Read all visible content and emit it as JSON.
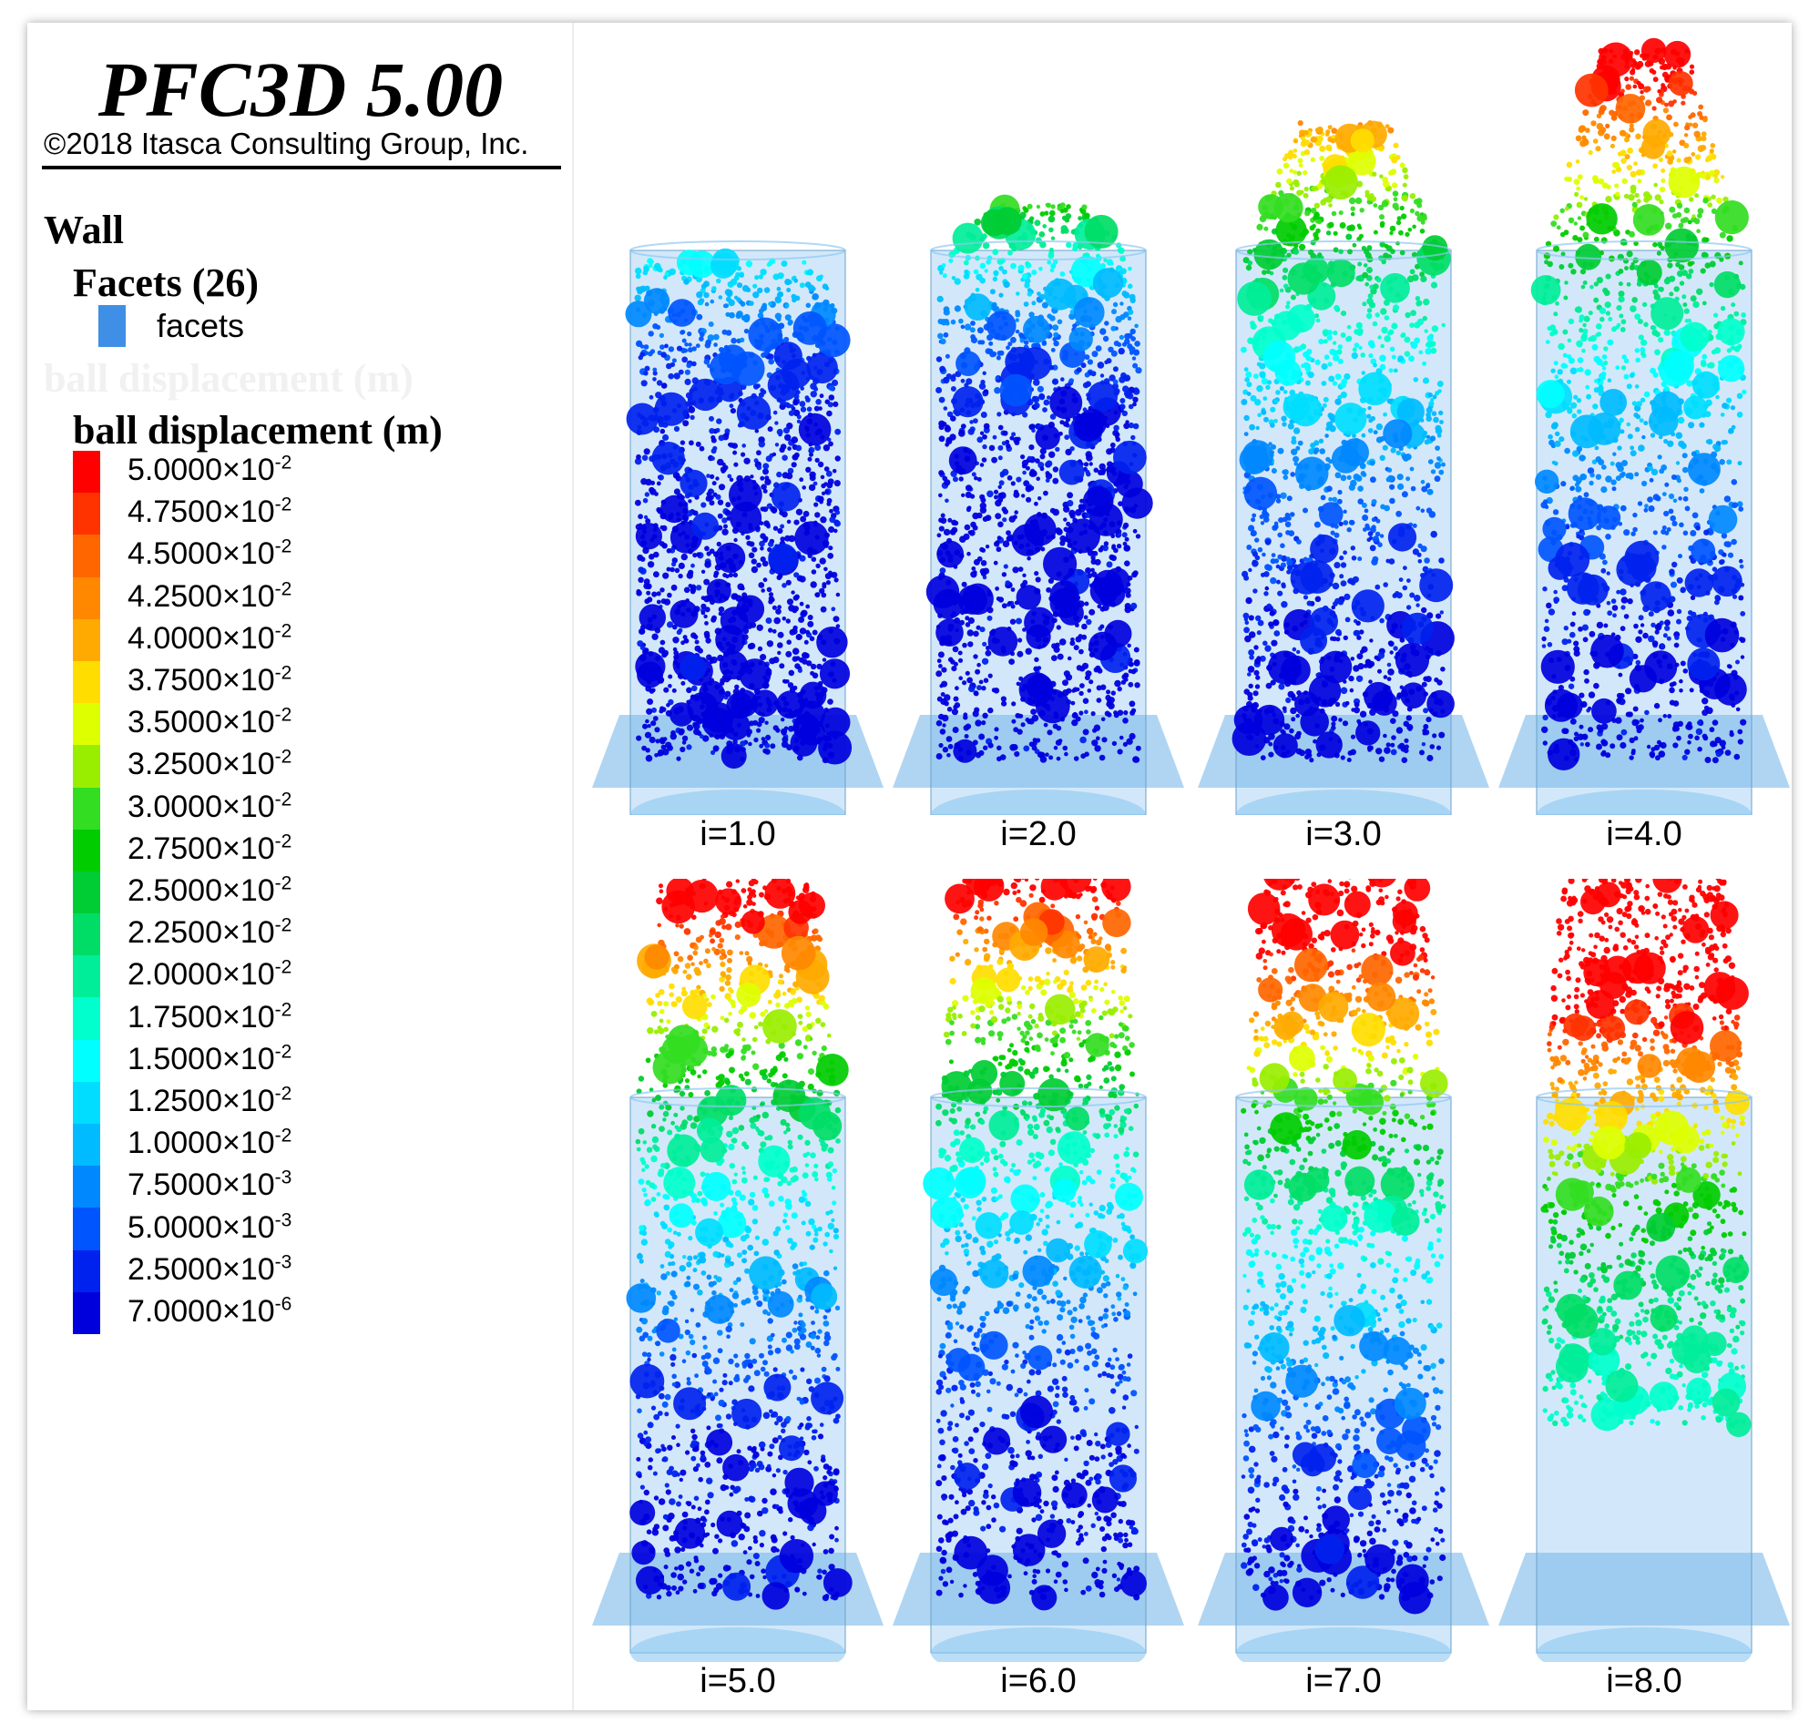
{
  "title": "PFC3D 5.00",
  "copyright": "©2018 Itasca Consulting Group, Inc.",
  "legend": {
    "wall_heading": "Wall",
    "facets_heading": "Facets (26)",
    "facets_label": "facets",
    "facets_color": "#3f8fe6",
    "ghost_heading": "ball displacement (m)",
    "ball_heading": "ball displacement (m)",
    "colorbar": [
      {
        "mant": "5.0000×10",
        "exp": "-2",
        "color": "#ff0000"
      },
      {
        "mant": "4.7500×10",
        "exp": "-2",
        "color": "#ff3300"
      },
      {
        "mant": "4.5000×10",
        "exp": "-2",
        "color": "#ff6600"
      },
      {
        "mant": "4.2500×10",
        "exp": "-2",
        "color": "#ff8800"
      },
      {
        "mant": "4.0000×10",
        "exp": "-2",
        "color": "#ffaa00"
      },
      {
        "mant": "3.7500×10",
        "exp": "-2",
        "color": "#ffdd00"
      },
      {
        "mant": "3.5000×10",
        "exp": "-2",
        "color": "#ddff00"
      },
      {
        "mant": "3.2500×10",
        "exp": "-2",
        "color": "#99ee00"
      },
      {
        "mant": "3.0000×10",
        "exp": "-2",
        "color": "#33dd22"
      },
      {
        "mant": "2.7500×10",
        "exp": "-2",
        "color": "#00cc00"
      },
      {
        "mant": "2.5000×10",
        "exp": "-2",
        "color": "#00cc33"
      },
      {
        "mant": "2.2500×10",
        "exp": "-2",
        "color": "#00dd66"
      },
      {
        "mant": "2.0000×10",
        "exp": "-2",
        "color": "#00ee99"
      },
      {
        "mant": "1.7500×10",
        "exp": "-2",
        "color": "#00ffcc"
      },
      {
        "mant": "1.5000×10",
        "exp": "-2",
        "color": "#00ffff"
      },
      {
        "mant": "1.2500×10",
        "exp": "-2",
        "color": "#00ddff"
      },
      {
        "mant": "1.0000×10",
        "exp": "-2",
        "color": "#00bbff"
      },
      {
        "mant": "7.5000×10",
        "exp": "-3",
        "color": "#0088ff"
      },
      {
        "mant": "5.0000×10",
        "exp": "-3",
        "color": "#0055ff"
      },
      {
        "mant": "2.5000×10",
        "exp": "-3",
        "color": "#0022ee"
      },
      {
        "mant": "7.0000×10",
        "exp": "-6",
        "color": "#0000dd"
      }
    ]
  },
  "panels": [
    {
      "caption": "i=1.0",
      "i": 1.0
    },
    {
      "caption": "i=2.0",
      "i": 2.0
    },
    {
      "caption": "i=3.0",
      "i": 3.0
    },
    {
      "caption": "i=4.0",
      "i": 4.0
    },
    {
      "caption": "i=5.0",
      "i": 5.0
    },
    {
      "caption": "i=6.0",
      "i": 6.0
    },
    {
      "caption": "i=7.0",
      "i": 7.0
    },
    {
      "caption": "i=8.0",
      "i": 8.0
    }
  ]
}
